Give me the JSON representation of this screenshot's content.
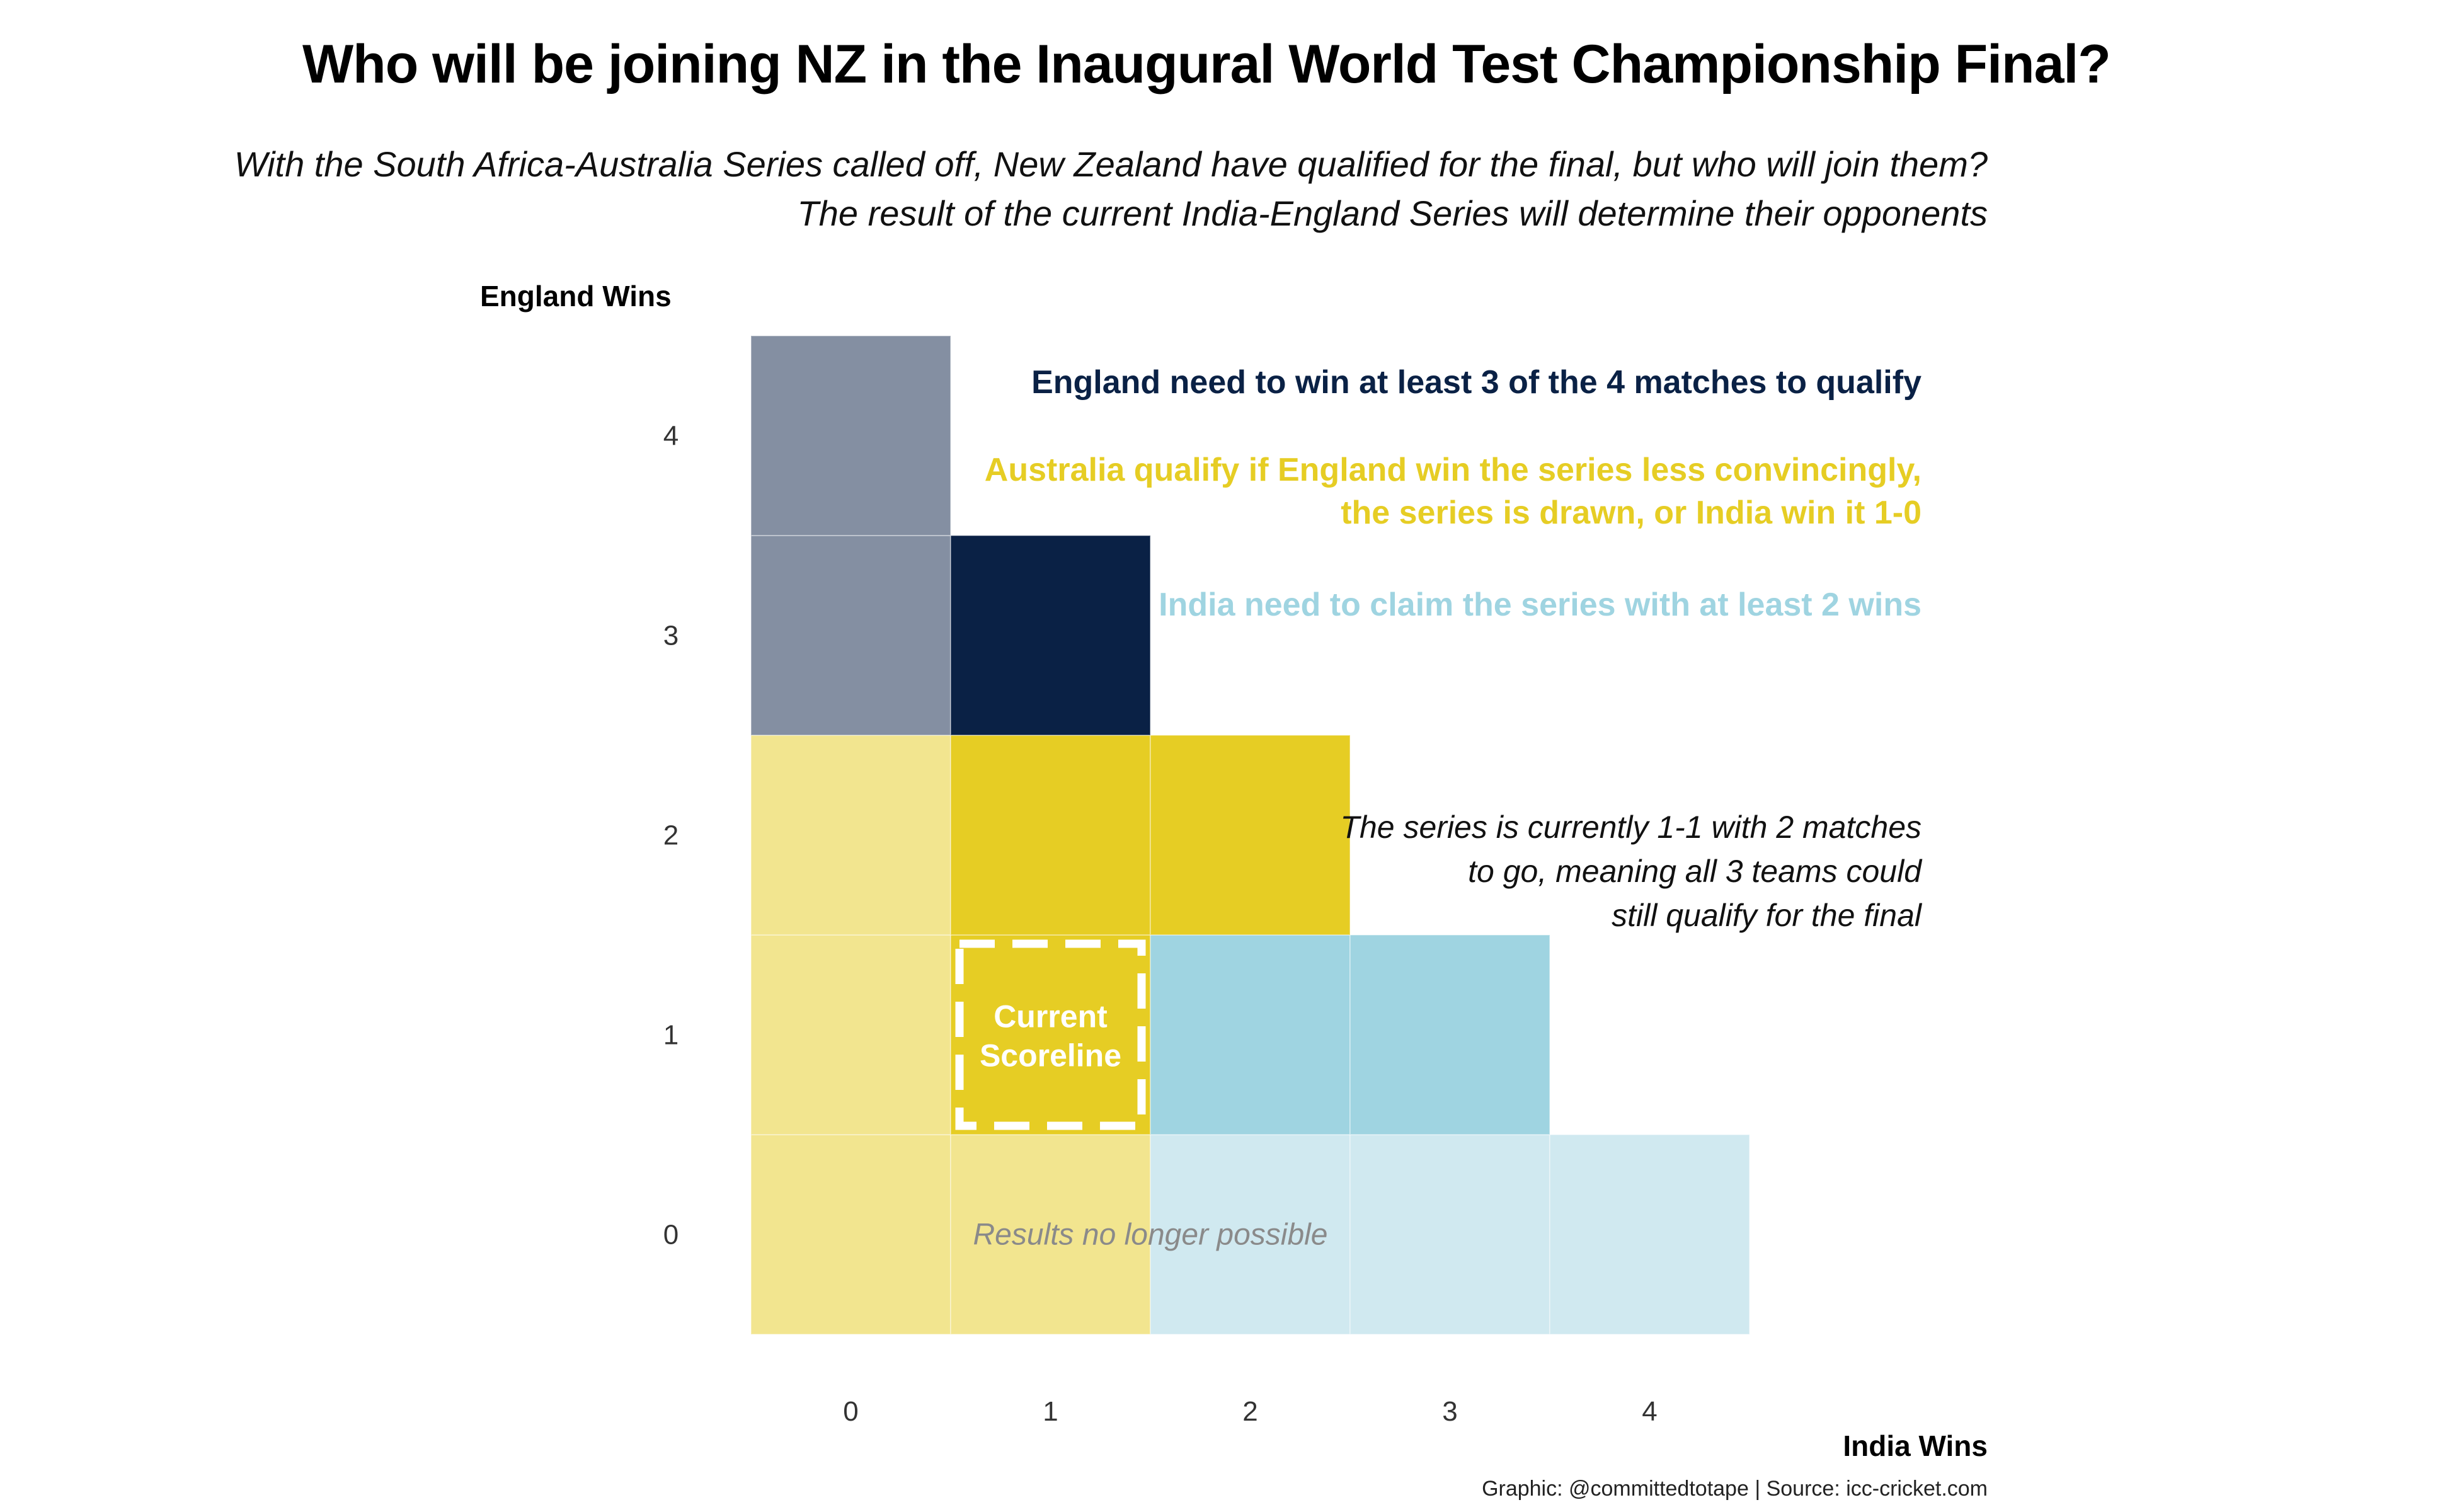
{
  "title": "Who will be joining NZ in the Inaugural World Test Championship Final?",
  "subtitle": [
    "With the South Africa-Australia Series called off, New Zealand have qualified for the final, but who will join them?",
    "The result of the current India-England Series will determine their opponents"
  ],
  "colors": {
    "england": "#0a2145",
    "england_faded": "#848fa2",
    "australia": "#e6cd24",
    "australia_faded": "#f2e58f",
    "india": "#9fd4e1",
    "india_faded": "#d0e9f0"
  },
  "chart_data": {
    "type": "heatmap",
    "xlabel": "India Wins",
    "ylabel": "England Wins",
    "x_ticks": [
      0,
      1,
      2,
      3,
      4
    ],
    "y_ticks": [
      0,
      1,
      2,
      3,
      4
    ],
    "grid": false,
    "cells": [
      {
        "india": 0,
        "england": 0,
        "outcome": "australia",
        "possible": false
      },
      {
        "india": 1,
        "england": 0,
        "outcome": "australia",
        "possible": false
      },
      {
        "india": 2,
        "england": 0,
        "outcome": "india",
        "possible": false
      },
      {
        "india": 3,
        "england": 0,
        "outcome": "india",
        "possible": false
      },
      {
        "india": 4,
        "england": 0,
        "outcome": "india",
        "possible": false
      },
      {
        "india": 0,
        "england": 1,
        "outcome": "australia",
        "possible": false
      },
      {
        "india": 1,
        "england": 1,
        "outcome": "australia",
        "possible": true,
        "current": true
      },
      {
        "india": 2,
        "england": 1,
        "outcome": "india",
        "possible": true
      },
      {
        "india": 3,
        "england": 1,
        "outcome": "india",
        "possible": true
      },
      {
        "india": 0,
        "england": 2,
        "outcome": "australia",
        "possible": false
      },
      {
        "india": 1,
        "england": 2,
        "outcome": "australia",
        "possible": true
      },
      {
        "india": 2,
        "england": 2,
        "outcome": "australia",
        "possible": true
      },
      {
        "india": 0,
        "england": 3,
        "outcome": "england",
        "possible": false
      },
      {
        "india": 1,
        "england": 3,
        "outcome": "england",
        "possible": true
      },
      {
        "india": 0,
        "england": 4,
        "outcome": "england",
        "possible": false
      }
    ],
    "annotations": {
      "current": [
        "Current",
        "Scoreline"
      ],
      "impossible": "Results no longer possible"
    }
  },
  "notes": {
    "england": "England need to win at least 3 of the 4 matches to qualify",
    "australia": [
      "Australia qualify if England win the series less convincingly,",
      "the series is drawn, or India win it 1-0"
    ],
    "india": "India need to claim the series with at least 2 wins",
    "current": [
      "The series is currently 1-1 with 2 matches",
      "to go, meaning all 3 teams could",
      "still qualify for the final"
    ]
  },
  "caption": "Graphic: @committedtotape | Source: icc-cricket.com"
}
